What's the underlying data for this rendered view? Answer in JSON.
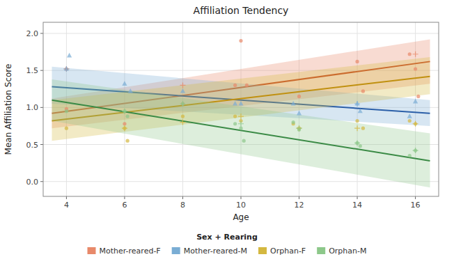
{
  "chart_data": {
    "type": "scatter",
    "title": "Affiliation Tendency",
    "x_label": "Age",
    "y_label": "Mean Affiliation Score",
    "xlim": [
      3.2,
      16.8
    ],
    "ylim": [
      -0.2,
      2.15
    ],
    "xticks": [
      4,
      6,
      8,
      10,
      12,
      14,
      16
    ],
    "yticks": [
      {
        "value": 0.0,
        "label": "0.0"
      },
      {
        "value": 0.5,
        "label": "0.5"
      },
      {
        "value": 1.0,
        "label": "1.0"
      },
      {
        "value": 1.5,
        "label": "1.5"
      },
      {
        "value": 2.0,
        "label": "2.0"
      }
    ],
    "grid": true,
    "legend": "bottom",
    "legend_title": "Sex + Rearing",
    "series": [
      {
        "name": "Mother-reared-F",
        "color": "#E8896A",
        "line_color": "#C84B28",
        "marker": "circle",
        "x": [
          4.0,
          4.0,
          6.0,
          8.0,
          9.8,
          10.0,
          10.2,
          12.0,
          14.0,
          14.2,
          15.8,
          16.0,
          16.1
        ],
        "values": [
          0.98,
          1.52,
          0.78,
          1.05,
          1.3,
          1.9,
          1.3,
          1.15,
          1.62,
          1.22,
          1.72,
          1.52,
          1.15
        ],
        "line_x": [
          3.5,
          16.5
        ],
        "line_values": [
          0.92,
          1.62
        ],
        "ci_upper": [
          1.12,
          1.92
        ],
        "ci_lower": [
          0.72,
          1.32
        ],
        "cross_x": [
          4.0,
          8.0,
          16.0
        ],
        "cross_values": [
          1.52,
          1.3,
          1.72
        ]
      },
      {
        "name": "Mother-reared-M",
        "color": "#7AADD4",
        "line_color": "#2B5FA8",
        "marker": "triangle",
        "x": [
          4.0,
          4.1,
          6.0,
          6.2,
          8.0,
          9.8,
          10.0,
          11.8,
          12.0,
          14.0,
          14.1,
          15.8,
          16.0
        ],
        "values": [
          1.52,
          1.7,
          1.32,
          1.22,
          1.22,
          1.05,
          1.05,
          1.05,
          0.92,
          1.05,
          0.95,
          0.88,
          1.08
        ],
        "line_x": [
          3.5,
          16.5
        ],
        "line_values": [
          1.28,
          0.92
        ],
        "ci_upper": [
          1.55,
          1.1
        ],
        "ci_lower": [
          1.05,
          0.75
        ],
        "cross_x": [
          4.0,
          14.0
        ],
        "cross_values": [
          1.52,
          1.05
        ]
      },
      {
        "name": "Orphan-F",
        "color": "#D4B840",
        "line_color": "#C09010",
        "marker": "circle",
        "x": [
          4.0,
          6.0,
          6.1,
          8.0,
          9.8,
          10.0,
          11.8,
          12.0,
          14.0,
          14.2,
          15.8,
          16.0
        ],
        "values": [
          0.72,
          0.72,
          0.55,
          0.88,
          0.88,
          0.82,
          0.78,
          0.72,
          0.82,
          0.72,
          0.82,
          0.78
        ],
        "line_x": [
          3.5,
          16.5
        ],
        "line_values": [
          0.82,
          1.42
        ],
        "ci_upper": [
          1.1,
          1.68
        ],
        "ci_lower": [
          0.55,
          1.18
        ],
        "cross_x": [
          6.0,
          8.0,
          10.0,
          12.0,
          14.0,
          16.0
        ],
        "cross_values": [
          0.72,
          0.8,
          0.88,
          0.72,
          0.72,
          0.78
        ]
      },
      {
        "name": "Orphan-M",
        "color": "#8DC88A",
        "line_color": "#3A8A45",
        "marker": "circle",
        "x": [
          4.0,
          6.0,
          6.1,
          8.0,
          9.8,
          10.0,
          10.1,
          11.8,
          12.0,
          14.0,
          14.1,
          15.8,
          16.0
        ],
        "values": [
          0.95,
          0.95,
          0.88,
          1.05,
          0.78,
          0.72,
          0.55,
          0.8,
          0.7,
          0.52,
          0.48,
          0.35,
          0.42
        ],
        "line_x": [
          3.5,
          16.5
        ],
        "line_values": [
          1.1,
          0.28
        ],
        "ci_upper": [
          1.38,
          0.65
        ],
        "ci_lower": [
          0.82,
          -0.08
        ],
        "cross_x": [
          6.0,
          8.0,
          10.0,
          12.0,
          14.0,
          16.0
        ],
        "cross_values": [
          0.95,
          1.05,
          0.78,
          0.72,
          0.52,
          0.42
        ]
      }
    ]
  }
}
